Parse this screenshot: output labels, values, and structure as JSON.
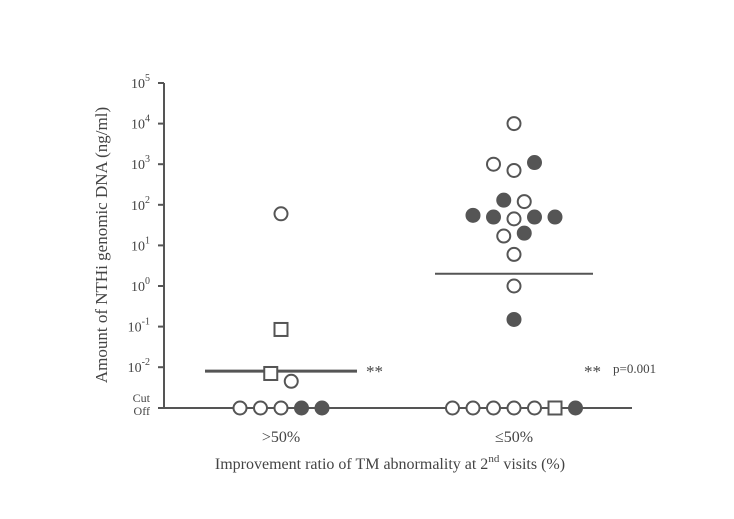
{
  "chart_data": {
    "type": "scatter",
    "ylabel": "Amount of NTHi genomic DNA (ng/ml)",
    "xlabel_main": "Improvement ratio of TM abnormality at 2",
    "xlabel_sup": "nd",
    "xlabel_tail": " visits (%)",
    "y_scale": "log",
    "ylim": [
      0.01,
      100000
    ],
    "y_ticks": [
      {
        "exp": "5"
      },
      {
        "exp": "4"
      },
      {
        "exp": "3"
      },
      {
        "exp": "2"
      },
      {
        "exp": "1"
      },
      {
        "exp": "0"
      },
      {
        "exp": "-1"
      },
      {
        "exp": "-2"
      }
    ],
    "y_tick_base": "10",
    "cutoff_label_line1": "Cut",
    "cutoff_label_line2": "Off",
    "categories": [
      ">50%",
      "≤50%"
    ],
    "groups": [
      {
        "category": ">50%",
        "median": 0.008,
        "points": [
          {
            "y": 60,
            "shape": "circle",
            "fill": "open"
          },
          {
            "y": 0.085,
            "shape": "square",
            "fill": "open"
          },
          {
            "y": 0.007,
            "shape": "square",
            "fill": "open"
          },
          {
            "y": 0.0045,
            "shape": "circle",
            "fill": "open"
          },
          {
            "y": "cutoff",
            "shape": "circle",
            "fill": "open"
          },
          {
            "y": "cutoff",
            "shape": "circle",
            "fill": "open"
          },
          {
            "y": "cutoff",
            "shape": "circle",
            "fill": "open"
          },
          {
            "y": "cutoff",
            "shape": "circle",
            "fill": "filled"
          },
          {
            "y": "cutoff",
            "shape": "circle",
            "fill": "filled"
          }
        ]
      },
      {
        "category": "≤50%",
        "median": 2,
        "points": [
          {
            "y": 10000,
            "shape": "circle",
            "fill": "open"
          },
          {
            "y": 1000,
            "shape": "circle",
            "fill": "open"
          },
          {
            "y": 700,
            "shape": "circle",
            "fill": "open"
          },
          {
            "y": 1100,
            "shape": "circle",
            "fill": "filled"
          },
          {
            "y": 130,
            "shape": "circle",
            "fill": "filled"
          },
          {
            "y": 55,
            "shape": "circle",
            "fill": "filled"
          },
          {
            "y": 50,
            "shape": "circle",
            "fill": "filled"
          },
          {
            "y": 45,
            "shape": "circle",
            "fill": "open"
          },
          {
            "y": 50,
            "shape": "circle",
            "fill": "filled"
          },
          {
            "y": 50,
            "shape": "circle",
            "fill": "filled"
          },
          {
            "y": 120,
            "shape": "circle",
            "fill": "open"
          },
          {
            "y": 17,
            "shape": "circle",
            "fill": "open"
          },
          {
            "y": 20,
            "shape": "circle",
            "fill": "filled"
          },
          {
            "y": 6,
            "shape": "circle",
            "fill": "open"
          },
          {
            "y": 1,
            "shape": "circle",
            "fill": "open"
          },
          {
            "y": 0.15,
            "shape": "circle",
            "fill": "filled"
          },
          {
            "y": "cutoff",
            "shape": "circle",
            "fill": "open"
          },
          {
            "y": "cutoff",
            "shape": "circle",
            "fill": "open"
          },
          {
            "y": "cutoff",
            "shape": "circle",
            "fill": "open"
          },
          {
            "y": "cutoff",
            "shape": "circle",
            "fill": "open"
          },
          {
            "y": "cutoff",
            "shape": "circle",
            "fill": "open"
          },
          {
            "y": "cutoff",
            "shape": "square",
            "fill": "open"
          },
          {
            "y": "cutoff",
            "shape": "circle",
            "fill": "filled"
          }
        ]
      }
    ],
    "significance_marker": "**",
    "significance_note_marker": "**",
    "significance_note_text": "p=0.001",
    "colors": {
      "axis": "#555555",
      "marker_stroke": "#555555",
      "marker_fill": "#555555",
      "open_fill": "#ffffff",
      "median_line": "#555555",
      "text": "#444444"
    }
  }
}
